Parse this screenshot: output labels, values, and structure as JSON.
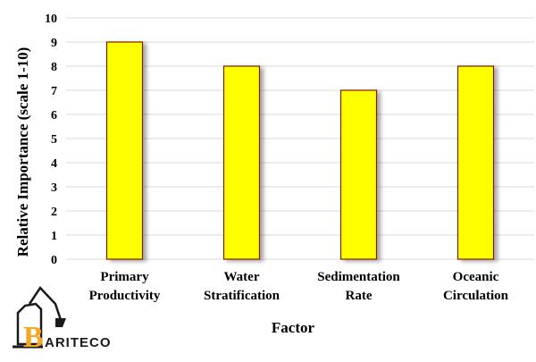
{
  "chart_data": {
    "type": "bar",
    "categories": [
      [
        "Primary",
        "Productivity"
      ],
      [
        "Water",
        "Stratification"
      ],
      [
        "Sedimentation",
        "Rate"
      ],
      [
        "Oceanic",
        "Circulation"
      ]
    ],
    "values": [
      9,
      8,
      7,
      8
    ],
    "title": "",
    "xlabel": "Factor",
    "ylabel": "Relative Importance (scale 1-10)",
    "ylim": [
      0,
      10
    ],
    "yticks": [
      0,
      1,
      2,
      3,
      4,
      5,
      6,
      7,
      8,
      9,
      10
    ],
    "grid": true,
    "legend": "none",
    "bar_color": "#ffff00",
    "bar_edge_color": "#7a1f00"
  },
  "logo": {
    "text": "ARITECO",
    "letter": "B",
    "color": "#f5a623"
  }
}
